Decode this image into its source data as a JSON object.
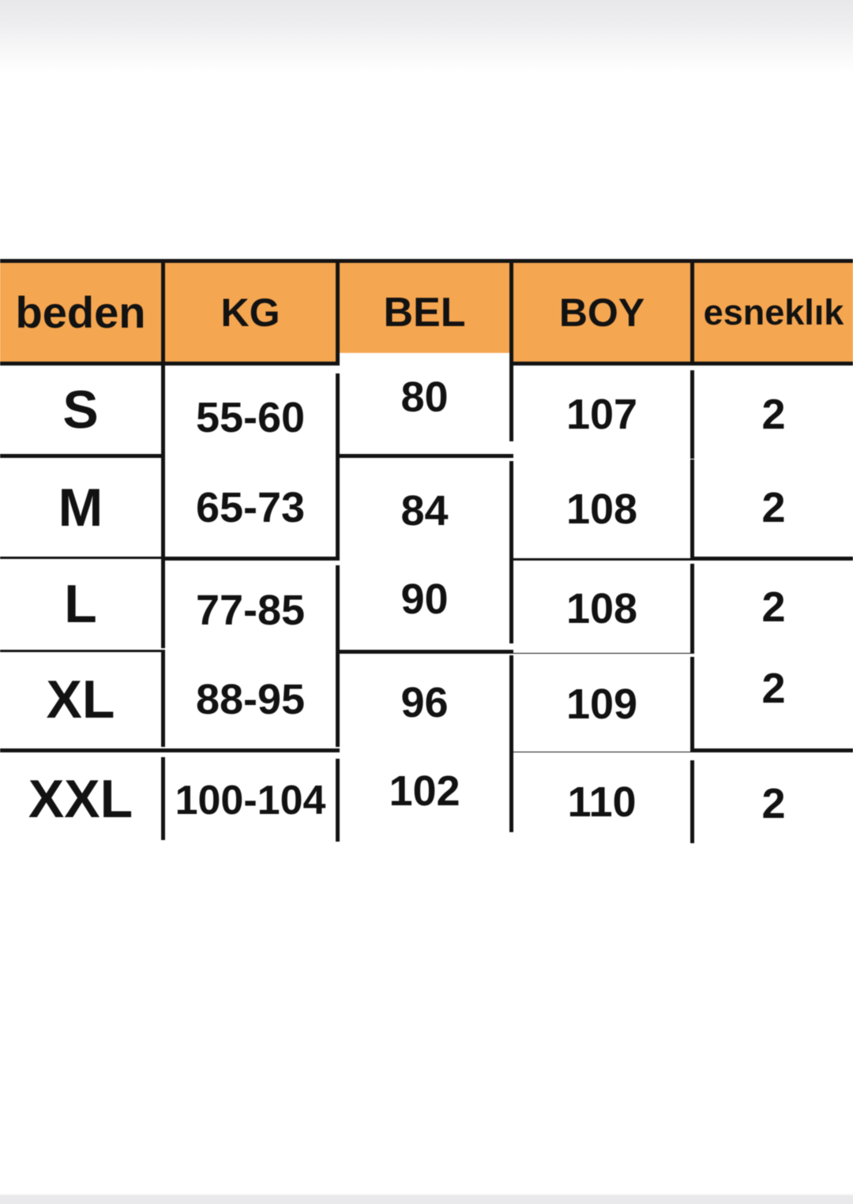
{
  "table": {
    "accent_color": "#f5a650",
    "border_color": "#131313",
    "headers": {
      "size": "beden",
      "kg": "KG",
      "bel": "BEL",
      "boy": "BOY",
      "esneklik": "esneklık"
    },
    "rows": [
      {
        "size": "S",
        "kg": "55-60",
        "bel": "80",
        "boy": "107",
        "esneklik": "2"
      },
      {
        "size": "M",
        "kg": "65-73",
        "bel": "84",
        "boy": "108",
        "esneklik": "2"
      },
      {
        "size": "L",
        "kg": "77-85",
        "bel": "90",
        "boy": "108",
        "esneklik": "2"
      },
      {
        "size": "XL",
        "kg": "88-95",
        "bel": "96",
        "boy": "109",
        "esneklik": "2"
      },
      {
        "size": "XXL",
        "kg": "100-104",
        "bel": "102",
        "boy": "110",
        "esneklik": "2"
      }
    ]
  },
  "chart_data": {
    "type": "table",
    "title": "",
    "columns": [
      "beden",
      "KG",
      "BEL",
      "BOY",
      "esneklık"
    ],
    "rows": [
      [
        "S",
        "55-60",
        "80",
        "107",
        "2"
      ],
      [
        "M",
        "65-73",
        "84",
        "108",
        "2"
      ],
      [
        "L",
        "77-85",
        "90",
        "108",
        "2"
      ],
      [
        "XL",
        "88-95",
        "96",
        "109",
        "2"
      ],
      [
        "XXL",
        "100-104",
        "102",
        "110",
        "2"
      ]
    ],
    "header_background": "#f5a650",
    "grid": true
  }
}
